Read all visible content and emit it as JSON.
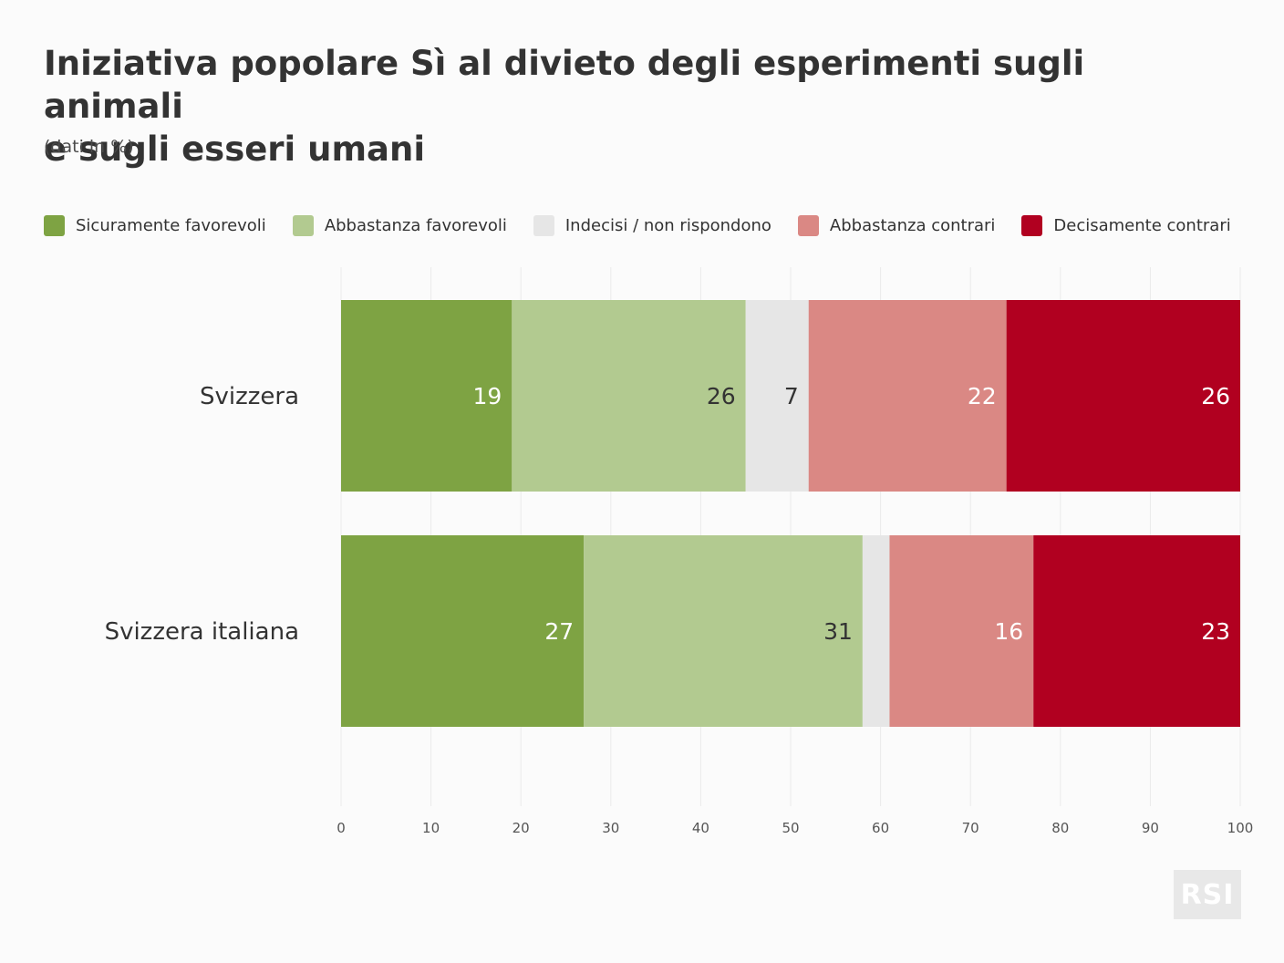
{
  "chart_data": {
    "type": "bar",
    "orientation": "horizontal",
    "stacked": true,
    "title_lines": [
      "Iniziativa popolare Sì al divieto degli esperimenti sugli animali",
      "e sugli esseri umani"
    ],
    "subtitle": "(dati in %)",
    "categories": [
      "Svizzera",
      "Svizzera italiana"
    ],
    "series": [
      {
        "name": "Sicuramente favorevoli",
        "color": "#7ea343",
        "label_color": "#ffffff",
        "values": [
          19,
          27
        ],
        "labels": [
          "19",
          "27"
        ]
      },
      {
        "name": "Abbastanza favorevoli",
        "color": "#b2ca90",
        "label_color": "#333333",
        "values": [
          26,
          31
        ],
        "labels": [
          "26",
          "31"
        ]
      },
      {
        "name": "Indecisi / non rispondono",
        "color": "#e6e6e6",
        "label_color": "#333333",
        "values": [
          7,
          3
        ],
        "labels": [
          "7",
          ""
        ]
      },
      {
        "name": "Abbastanza contrari",
        "color": "#da8884",
        "label_color": "#ffffff",
        "values": [
          22,
          16
        ],
        "labels": [
          "22",
          "16"
        ]
      },
      {
        "name": "Decisamente contrari",
        "color": "#b10020",
        "label_color": "#ffffff",
        "values": [
          26,
          23
        ],
        "labels": [
          "26",
          "23"
        ]
      }
    ],
    "x_ticks": [
      0,
      10,
      20,
      30,
      40,
      50,
      60,
      70,
      80,
      90,
      100
    ],
    "xlim": [
      0,
      100
    ],
    "grid": true,
    "legend_position": "top"
  },
  "logo": {
    "text": "RSI"
  }
}
